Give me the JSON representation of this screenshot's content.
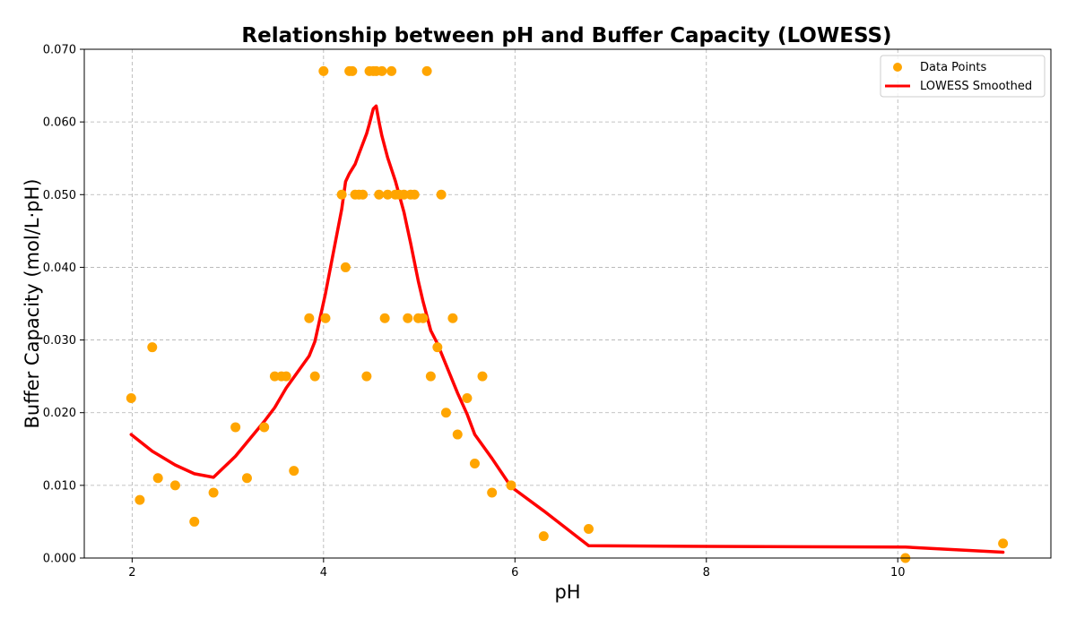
{
  "chart_data": {
    "type": "scatter",
    "title": "Relationship between pH and Buffer Capacity (LOWESS)",
    "xlabel": "pH",
    "ylabel": "Buffer Capacity (mol/L·pH)",
    "xlim": [
      1.5,
      11.6
    ],
    "ylim": [
      0,
      0.07
    ],
    "x_ticks": [
      2,
      4,
      6,
      8,
      10
    ],
    "y_ticks": [
      0.0,
      0.01,
      0.02,
      0.03,
      0.04,
      0.05,
      0.06,
      0.07
    ],
    "x_tick_labels": [
      "2",
      "4",
      "6",
      "8",
      "10"
    ],
    "y_tick_labels": [
      "0.000",
      "0.010",
      "0.020",
      "0.030",
      "0.040",
      "0.050",
      "0.060",
      "0.070"
    ],
    "grid": true,
    "legend_position": "top-right",
    "series": [
      {
        "name": "Data Points",
        "kind": "scatter",
        "color": "#FFA500",
        "points": [
          [
            1.99,
            0.022
          ],
          [
            2.08,
            0.008
          ],
          [
            2.21,
            0.029
          ],
          [
            2.27,
            0.011
          ],
          [
            2.45,
            0.01
          ],
          [
            2.65,
            0.005
          ],
          [
            2.85,
            0.009
          ],
          [
            3.08,
            0.018
          ],
          [
            3.2,
            0.011
          ],
          [
            3.38,
            0.018
          ],
          [
            3.49,
            0.025
          ],
          [
            3.56,
            0.025
          ],
          [
            3.61,
            0.025
          ],
          [
            3.69,
            0.012
          ],
          [
            3.85,
            0.033
          ],
          [
            3.91,
            0.025
          ],
          [
            4.0,
            0.067
          ],
          [
            4.02,
            0.033
          ],
          [
            4.19,
            0.05
          ],
          [
            4.23,
            0.04
          ],
          [
            4.27,
            0.067
          ],
          [
            4.3,
            0.067
          ],
          [
            4.33,
            0.05
          ],
          [
            4.37,
            0.05
          ],
          [
            4.41,
            0.05
          ],
          [
            4.45,
            0.025
          ],
          [
            4.48,
            0.067
          ],
          [
            4.52,
            0.067
          ],
          [
            4.55,
            0.067
          ],
          [
            4.58,
            0.05
          ],
          [
            4.61,
            0.067
          ],
          [
            4.64,
            0.033
          ],
          [
            4.67,
            0.05
          ],
          [
            4.71,
            0.067
          ],
          [
            4.75,
            0.05
          ],
          [
            4.79,
            0.05
          ],
          [
            4.84,
            0.05
          ],
          [
            4.88,
            0.033
          ],
          [
            4.91,
            0.05
          ],
          [
            4.95,
            0.05
          ],
          [
            4.99,
            0.033
          ],
          [
            5.04,
            0.033
          ],
          [
            5.08,
            0.067
          ],
          [
            5.12,
            0.025
          ],
          [
            5.19,
            0.029
          ],
          [
            5.23,
            0.05
          ],
          [
            5.28,
            0.02
          ],
          [
            5.35,
            0.033
          ],
          [
            5.4,
            0.017
          ],
          [
            5.5,
            0.022
          ],
          [
            5.58,
            0.013
          ],
          [
            5.66,
            0.025
          ],
          [
            5.76,
            0.009
          ],
          [
            5.96,
            0.01
          ],
          [
            6.3,
            0.003
          ],
          [
            6.77,
            0.004
          ],
          [
            10.08,
            0.0
          ],
          [
            11.1,
            0.002
          ]
        ]
      },
      {
        "name": "LOWESS Smoothed",
        "kind": "line",
        "color": "#FF0000",
        "points": [
          [
            1.99,
            0.017
          ],
          [
            2.21,
            0.0147
          ],
          [
            2.45,
            0.0128
          ],
          [
            2.65,
            0.0116
          ],
          [
            2.85,
            0.0111
          ],
          [
            3.08,
            0.014
          ],
          [
            3.38,
            0.0188
          ],
          [
            3.49,
            0.0207
          ],
          [
            3.61,
            0.0234
          ],
          [
            3.85,
            0.0278
          ],
          [
            3.91,
            0.0298
          ],
          [
            4.02,
            0.0364
          ],
          [
            4.19,
            0.048
          ],
          [
            4.23,
            0.0518
          ],
          [
            4.27,
            0.0529
          ],
          [
            4.33,
            0.0542
          ],
          [
            4.37,
            0.0556
          ],
          [
            4.45,
            0.0584
          ],
          [
            4.48,
            0.0598
          ],
          [
            4.52,
            0.0618
          ],
          [
            4.55,
            0.0622
          ],
          [
            4.58,
            0.06
          ],
          [
            4.61,
            0.0581
          ],
          [
            4.67,
            0.0551
          ],
          [
            4.75,
            0.0519
          ],
          [
            4.84,
            0.0476
          ],
          [
            4.91,
            0.0433
          ],
          [
            4.99,
            0.0381
          ],
          [
            5.04,
            0.0353
          ],
          [
            5.12,
            0.0313
          ],
          [
            5.19,
            0.0295
          ],
          [
            5.28,
            0.0266
          ],
          [
            5.4,
            0.0227
          ],
          [
            5.5,
            0.0198
          ],
          [
            5.58,
            0.017
          ],
          [
            5.76,
            0.0137
          ],
          [
            5.96,
            0.0098
          ],
          [
            6.3,
            0.0065
          ],
          [
            6.77,
            0.0017
          ],
          [
            8.0,
            0.0016
          ],
          [
            10.08,
            0.0015
          ],
          [
            11.1,
            0.0008
          ]
        ]
      }
    ]
  }
}
